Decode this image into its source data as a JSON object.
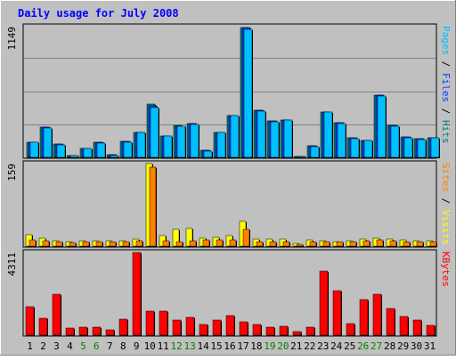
{
  "chart_data": {
    "type": "bar",
    "title": "Daily usage for July 2008",
    "categories": [
      "1",
      "2",
      "3",
      "4",
      "5",
      "6",
      "7",
      "8",
      "9",
      "10",
      "11",
      "12",
      "13",
      "14",
      "15",
      "16",
      "17",
      "18",
      "19",
      "20",
      "21",
      "22",
      "23",
      "24",
      "25",
      "26",
      "27",
      "28",
      "29",
      "30",
      "31"
    ],
    "weekend_days": [
      "5",
      "6",
      "12",
      "13",
      "19",
      "20",
      "26",
      "27"
    ],
    "panels": [
      {
        "id": "hits",
        "max_label": "1149",
        "ylim": [
          0,
          1149
        ],
        "legend": [
          {
            "text": "Pages",
            "color": "#00c0ff"
          },
          {
            "text": " / ",
            "color": "#000000"
          },
          {
            "text": "Files",
            "color": "#0040ff"
          },
          {
            "text": " / ",
            "color": "#000000"
          },
          {
            "text": "Hits",
            "color": "#008080"
          }
        ],
        "series": [
          {
            "name": "Hits",
            "color": "#008080",
            "values": [
              135,
              265,
              115,
              15,
              80,
              130,
              20,
              140,
              220,
              470,
              190,
              280,
              295,
              60,
              220,
              370,
              1140,
              415,
              320,
              330,
              5,
              100,
              400,
              305,
              170,
              150,
              550,
              280,
              180,
              165,
              175
            ]
          },
          {
            "name": "Files",
            "color": "#0040ff",
            "values": [
              135,
              265,
              115,
              15,
              80,
              130,
              20,
              140,
              220,
              450,
              190,
              275,
              295,
              60,
              220,
              370,
              1140,
              415,
              320,
              330,
              5,
              100,
              400,
              305,
              170,
              150,
              550,
              280,
              180,
              165,
              175
            ]
          },
          {
            "name": "Pages",
            "color": "#00c0ff",
            "values": [
              130,
              260,
              110,
              12,
              75,
              125,
              18,
              135,
              215,
              440,
              185,
              270,
              290,
              55,
              215,
              365,
              1125,
              405,
              310,
              325,
              4,
              95,
              395,
              300,
              165,
              145,
              540,
              270,
              175,
              160,
              170
            ]
          }
        ]
      },
      {
        "id": "visits",
        "max_label": "159",
        "ylim": [
          0,
          159
        ],
        "legend": [
          {
            "text": "Sites",
            "color": "#ff8000"
          },
          {
            "text": " / ",
            "color": "#000000"
          },
          {
            "text": "Visits",
            "color": "#ffff00"
          }
        ],
        "series": [
          {
            "name": "Visits",
            "color": "#ffff00",
            "values": [
              22,
              16,
              11,
              8,
              10,
              10,
              11,
              11,
              13,
              159,
              20,
              32,
              34,
              16,
              17,
              20,
              48,
              14,
              13,
              13,
              5,
              12,
              11,
              9,
              11,
              13,
              16,
              14,
              12,
              10,
              11
            ]
          },
          {
            "name": "Sites",
            "color": "#ff8000",
            "values": [
              12,
              10,
              8,
              6,
              8,
              8,
              8,
              8,
              10,
              153,
              11,
              9,
              10,
              12,
              12,
              12,
              32,
              9,
              8,
              9,
              4,
              8,
              9,
              8,
              9,
              10,
              12,
              11,
              9,
              8,
              8
            ]
          }
        ]
      },
      {
        "id": "kbytes",
        "max_label": "4311",
        "ylim": [
          0,
          4311
        ],
        "legend": [
          {
            "text": "KBytes",
            "color": "#ff0000"
          }
        ],
        "series": [
          {
            "name": "KBytes",
            "color": "#ff0000",
            "values": [
              1500,
              870,
              2150,
              380,
              410,
              410,
              260,
              820,
              4311,
              1230,
              1230,
              810,
              910,
              570,
              810,
              1000,
              700,
              570,
              420,
              480,
              170,
              410,
              3320,
              2300,
              580,
              1840,
              2130,
              1380,
              990,
              810,
              500
            ]
          }
        ]
      }
    ]
  }
}
